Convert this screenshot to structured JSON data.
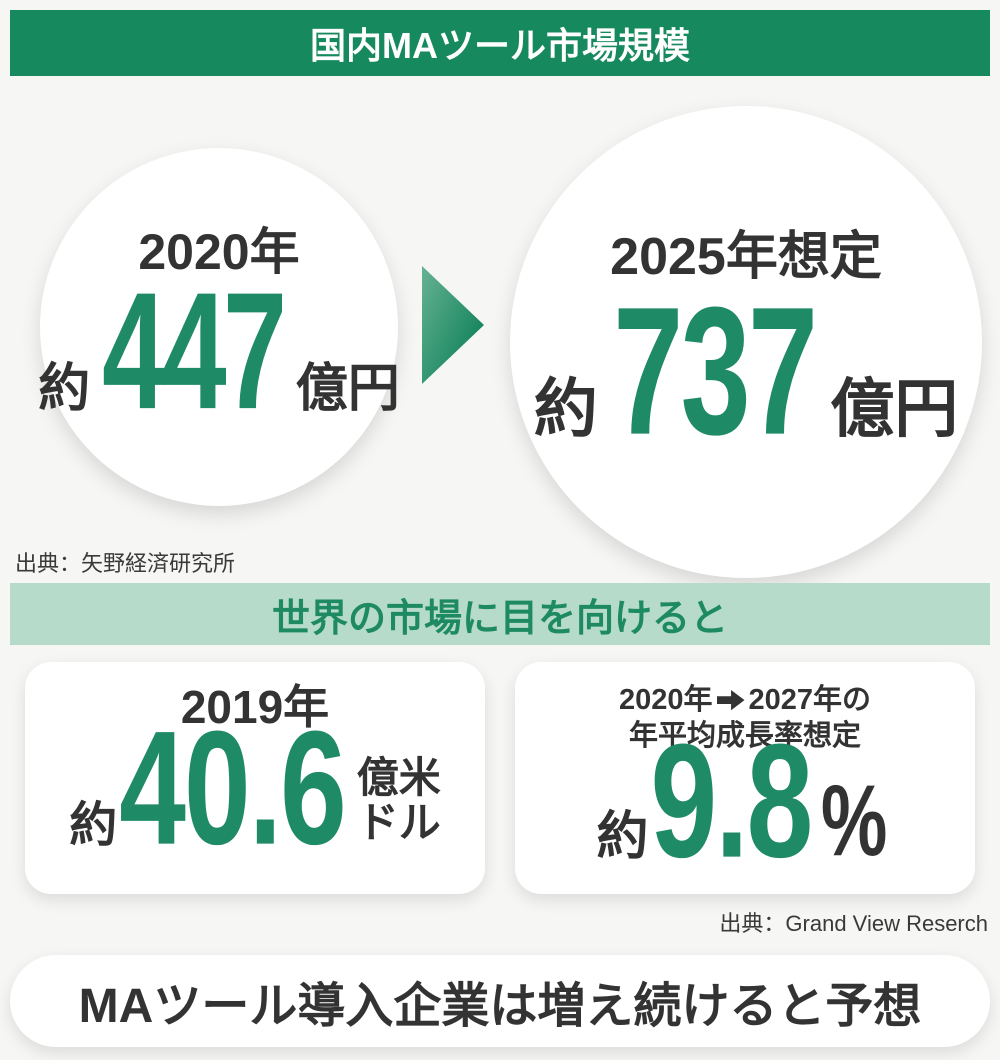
{
  "colors": {
    "banner_green": "#17895f",
    "accent_green": "#1f8b66",
    "light_green_bg": "#b6dbca",
    "dark_text": "#333333",
    "page_bg": "#f6f6f4"
  },
  "icons": {
    "growth_arrow": "right-pointing-triangle",
    "range_arrow": "black-rightwards-arrow"
  },
  "header": {
    "title": "国内MAツール市場規模"
  },
  "domestic": {
    "current": {
      "year": "2020年",
      "approx": "約",
      "value": "447",
      "unit": "億円"
    },
    "forecast": {
      "year": "2025年想定",
      "approx": "約",
      "value": "737",
      "unit": "億円"
    },
    "source": "出典：矢野経済研究所"
  },
  "global": {
    "banner": "世界の市場に目を向けると",
    "market_2019": {
      "year": "2019年",
      "approx": "約",
      "value": "40.6",
      "unit_top": "億米",
      "unit_bottom": "ドル"
    },
    "cagr": {
      "label_from": "2020年",
      "label_to": "2027年の",
      "label_line2": "年平均成長率想定",
      "approx": "約",
      "value": "9.8",
      "unit": "%"
    },
    "source": "出典：Grand View Reserch"
  },
  "footer": {
    "message": "MAツール導入企業は増え続けると予想"
  }
}
